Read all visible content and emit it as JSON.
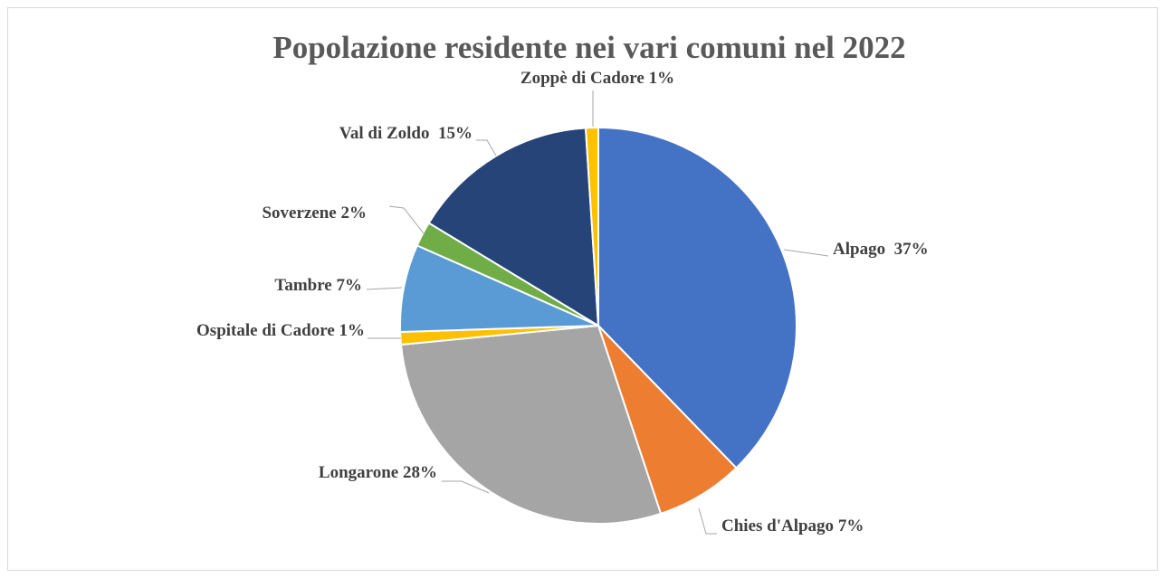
{
  "chart_data": {
    "type": "pie",
    "title": "Popolazione residente nei vari comuni nel 2022",
    "categories": [
      "Alpago",
      "Chies d'Alpago",
      "Longarone",
      "Ospitale di Cadore",
      "Tambre",
      "Soverzene",
      "Val di Zoldo",
      "Zoppè di Cadore"
    ],
    "values": [
      37,
      7,
      28,
      1,
      7,
      2,
      15,
      1
    ],
    "value_labels": [
      "37%",
      "7%",
      "28%",
      "1%",
      "7%",
      "2%",
      "15%",
      "1%"
    ],
    "colors": [
      "#4472c4",
      "#ed7d31",
      "#a5a5a5",
      "#ffc000",
      "#5b9bd5",
      "#70ad47",
      "#264478",
      "#ffc000"
    ]
  }
}
